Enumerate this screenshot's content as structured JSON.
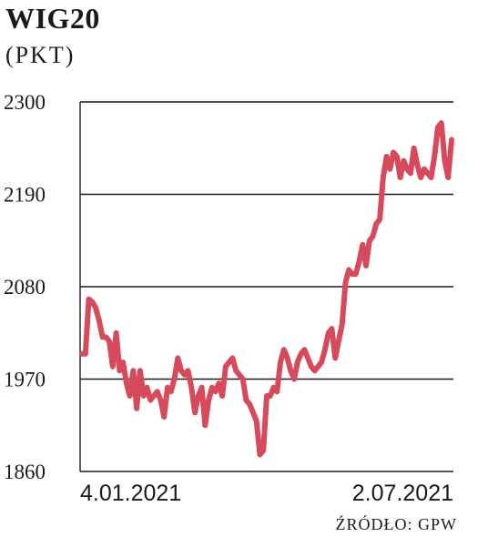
{
  "header": {
    "title": "WIG20",
    "unit": "(PKT)"
  },
  "footer": {
    "source": "ŹRÓDŁO: GPW"
  },
  "colors": {
    "line": "#d64a5c",
    "grid": "#1a1a1a",
    "text": "#1a1a1a"
  },
  "chart_data": {
    "type": "line",
    "title": "WIG20",
    "ylabel": "(PKT)",
    "xlabel": "",
    "ylim": [
      1860,
      2300
    ],
    "yticks": [
      1860,
      1970,
      2080,
      2190,
      2300
    ],
    "ytick_labels": [
      "1860",
      "1970",
      "2080",
      "2190",
      "2300"
    ],
    "xtick_labels": [
      "4.01.2021",
      "2.07.2021"
    ],
    "grid": true,
    "series": [
      {
        "values": [
          2000,
          2000,
          2065,
          2062,
          2055,
          2040,
          2020,
          2020,
          2015,
          1985,
          2025,
          1980,
          1990,
          1965,
          1950,
          1980,
          1935,
          1980,
          1950,
          1960,
          1945,
          1950,
          1955,
          1945,
          1925,
          1960,
          1955,
          1970,
          1995,
          1980,
          1975,
          1980,
          1960,
          1930,
          1950,
          1960,
          1915,
          1945,
          1960,
          1955,
          1965,
          1950,
          1985,
          1990,
          1995,
          1980,
          1975,
          1970,
          1945,
          1940,
          1930,
          1920,
          1880,
          1885,
          1950,
          1950,
          1960,
          1955,
          1990,
          2005,
          1995,
          1980,
          1970,
          1990,
          2000,
          2005,
          1995,
          1985,
          1980,
          1985,
          1990,
          2005,
          2025,
          2030,
          1995,
          2015,
          2035,
          2085,
          2100,
          2095,
          2095,
          2110,
          2130,
          2105,
          2135,
          2140,
          2155,
          2160,
          2210,
          2235,
          2220,
          2240,
          2235,
          2210,
          2230,
          2220,
          2215,
          2245,
          2225,
          2210,
          2220,
          2215,
          2210,
          2235,
          2270,
          2275,
          2230,
          2210,
          2255
        ]
      }
    ]
  }
}
